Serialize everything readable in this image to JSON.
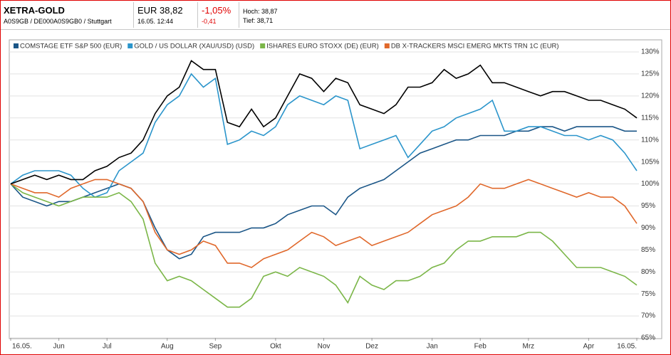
{
  "header": {
    "title": "XETRA-GOLD",
    "id_line": "A0S9GB / DE000A0S9GB0 / Stuttgart",
    "price": "EUR 38,82",
    "datetime": "16.05. 12:44",
    "change_pct": "-1,05%",
    "change_abs": "-0,41",
    "high": "Hoch: 38,87",
    "low": "Tief: 38,71"
  },
  "chart_data": {
    "type": "line",
    "categories": [
      "16.05.",
      null,
      null,
      null,
      "Jun",
      null,
      null,
      null,
      "Jul",
      null,
      null,
      null,
      null,
      "Aug",
      null,
      null,
      null,
      "Sep",
      null,
      null,
      null,
      null,
      "Okt",
      null,
      null,
      null,
      "Nov",
      null,
      null,
      null,
      "Dez",
      null,
      null,
      null,
      null,
      "Jan",
      null,
      null,
      null,
      "Feb",
      null,
      null,
      null,
      "Mrz",
      null,
      null,
      null,
      null,
      "Apr",
      null,
      null,
      null,
      "16.05."
    ],
    "series": [
      {
        "name": "COMSTAGE ETF S&P 500 (EUR)",
        "color": "#1b5687",
        "values": [
          100,
          97,
          96,
          95,
          96,
          96,
          97,
          98,
          99,
          100,
          99,
          96,
          90,
          85,
          83,
          84,
          88,
          89,
          89,
          89,
          90,
          90,
          91,
          93,
          94,
          95,
          95,
          93,
          97,
          99,
          100,
          101,
          103,
          105,
          107,
          108,
          109,
          110,
          110,
          111,
          111,
          111,
          112,
          112,
          113,
          113,
          112,
          113,
          113,
          113,
          113,
          112,
          112
        ]
      },
      {
        "name": "GOLD / US DOLLAR (XAU/USD) (USD)",
        "color": "#2b95cb",
        "values": [
          100,
          102,
          103,
          103,
          103,
          102,
          99,
          97,
          98,
          103,
          105,
          107,
          114,
          118,
          120,
          125,
          122,
          124,
          109,
          110,
          112,
          111,
          113,
          118,
          120,
          119,
          118,
          120,
          119,
          108,
          109,
          110,
          111,
          106,
          109,
          112,
          113,
          115,
          116,
          117,
          119,
          112,
          112,
          113,
          113,
          112,
          111,
          111,
          110,
          111,
          110,
          107,
          103
        ]
      },
      {
        "name": "ISHARES EURO STOXX (DE) (EUR)",
        "color": "#7bb648",
        "values": [
          100,
          98,
          97,
          96,
          95,
          96,
          97,
          97,
          97,
          98,
          96,
          92,
          82,
          78,
          79,
          78,
          76,
          74,
          72,
          72,
          74,
          79,
          80,
          79,
          81,
          80,
          79,
          77,
          73,
          79,
          77,
          76,
          78,
          78,
          79,
          81,
          82,
          85,
          87,
          87,
          88,
          88,
          88,
          89,
          89,
          87,
          84,
          81,
          81,
          81,
          80,
          79,
          77
        ]
      },
      {
        "name": "DB X-TRACKERS MSCI EMERG MKTS TRN 1C (EUR)",
        "color": "#e0682b",
        "values": [
          100,
          99,
          98,
          98,
          97,
          99,
          100,
          101,
          101,
          100,
          99,
          96,
          89,
          85,
          84,
          85,
          87,
          86,
          82,
          82,
          81,
          83,
          84,
          85,
          87,
          89,
          88,
          86,
          87,
          88,
          86,
          87,
          88,
          89,
          91,
          93,
          94,
          95,
          97,
          100,
          99,
          99,
          100,
          101,
          100,
          99,
          98,
          97,
          98,
          97,
          97,
          95,
          91
        ]
      },
      {
        "color": "#000000",
        "values": [
          100,
          101,
          102,
          101,
          102,
          101,
          101,
          103,
          104,
          106,
          107,
          110,
          116,
          120,
          122,
          128,
          126,
          126,
          114,
          113,
          117,
          113,
          115,
          120,
          125,
          124,
          121,
          124,
          123,
          118,
          117,
          116,
          118,
          122,
          122,
          123,
          126,
          124,
          125,
          127,
          123,
          123,
          122,
          121,
          120,
          121,
          121,
          120,
          119,
          119,
          118,
          117,
          115
        ]
      }
    ],
    "ylim": [
      65,
      130
    ],
    "yticks": [
      {
        "value": 65,
        "label": "65%"
      },
      {
        "value": 70,
        "label": "70%"
      },
      {
        "value": 75,
        "label": "75%"
      },
      {
        "value": 80,
        "label": "80%"
      },
      {
        "value": 85,
        "label": "85%"
      },
      {
        "value": 90,
        "label": "90%"
      },
      {
        "value": 95,
        "label": "95%"
      },
      {
        "value": 100,
        "label": "100%"
      },
      {
        "value": 105,
        "label": "105%"
      },
      {
        "value": 110,
        "label": "110%"
      },
      {
        "value": 115,
        "label": "115%"
      },
      {
        "value": 120,
        "label": "120%"
      },
      {
        "value": 125,
        "label": "125%"
      },
      {
        "value": 130,
        "label": "130%"
      }
    ],
    "grid": true
  }
}
